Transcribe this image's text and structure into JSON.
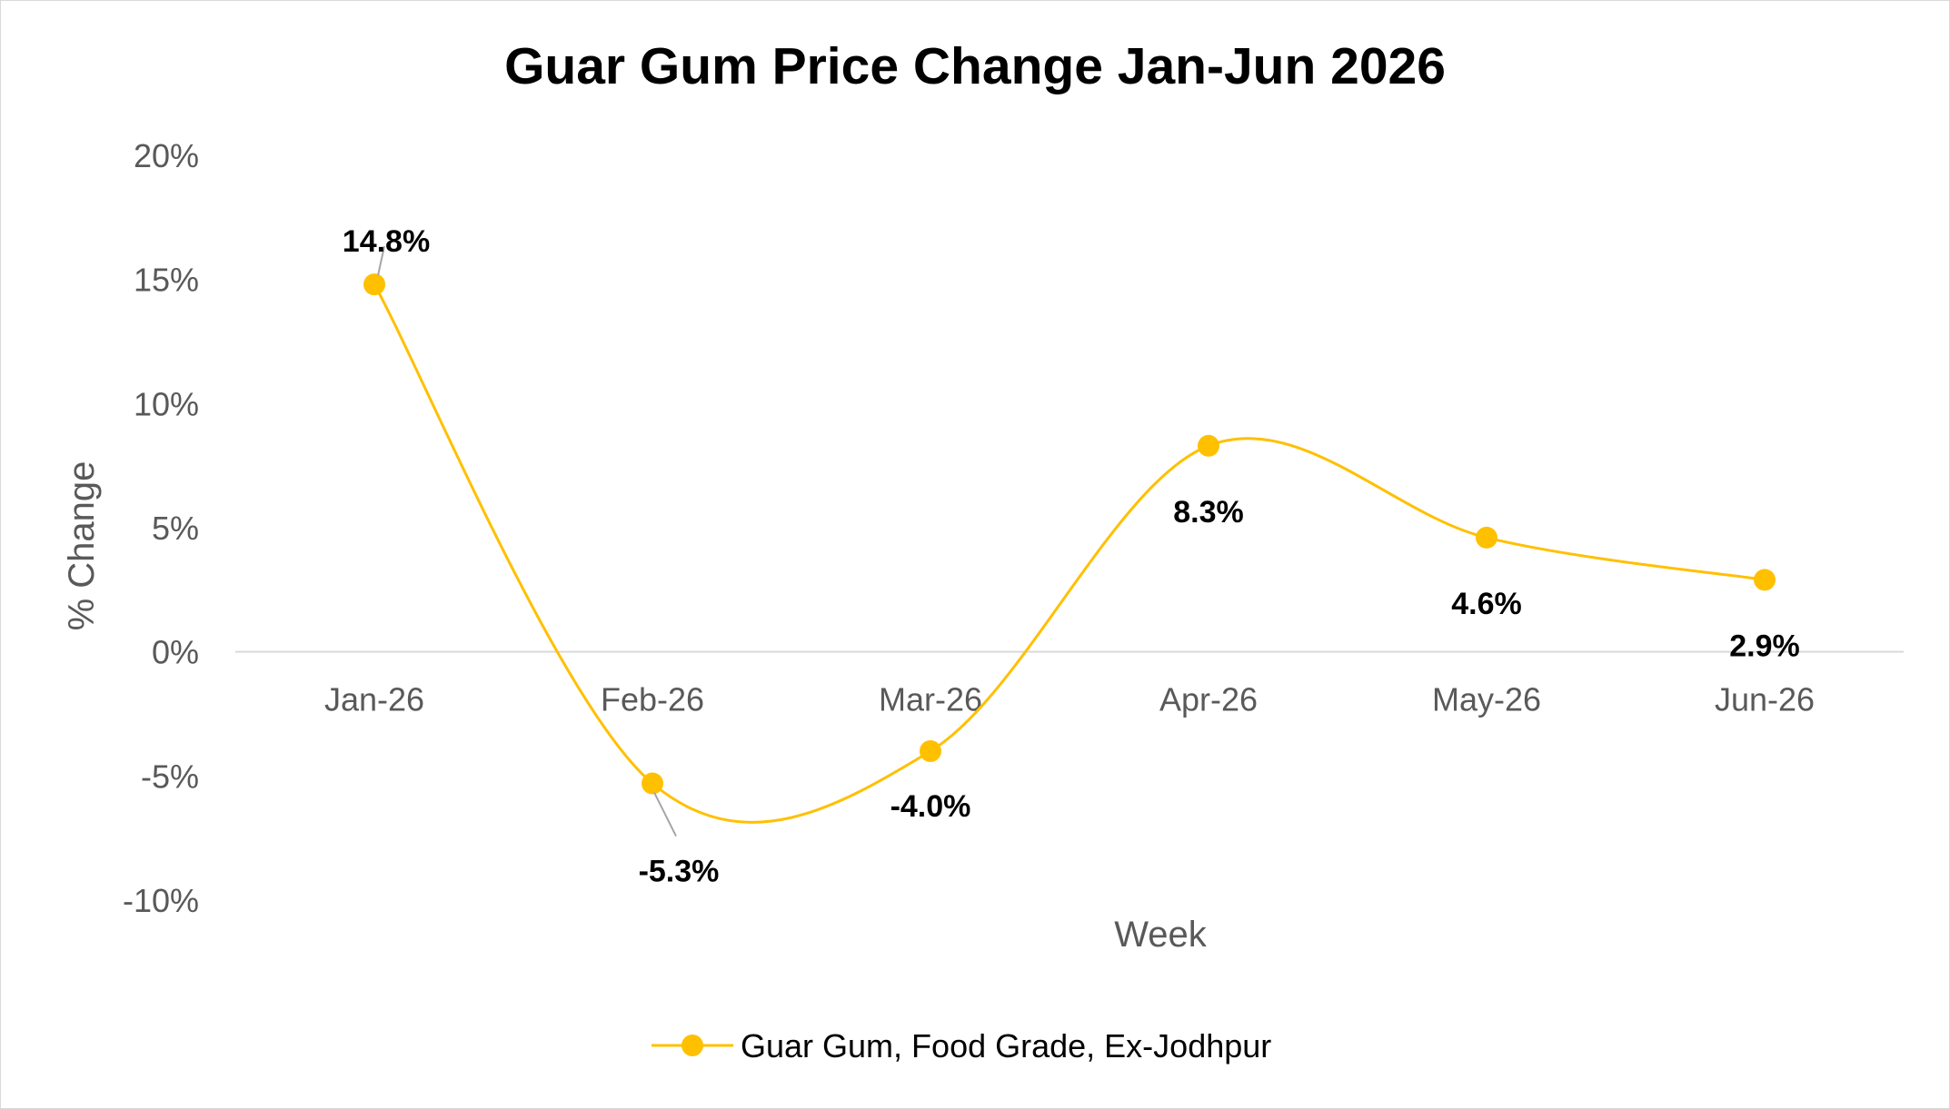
{
  "chart_data": {
    "type": "line",
    "title": "Guar Gum Price Change Jan-Jun 2026",
    "xlabel": "Week",
    "ylabel": "% Change",
    "categories": [
      "Jan-26",
      "Feb-26",
      "Mar-26",
      "Apr-26",
      "May-26",
      "Jun-26"
    ],
    "series": [
      {
        "name": "Guar Gum, Food Grade, Ex-Jodhpur",
        "values": [
          14.8,
          -5.3,
          -4.0,
          8.3,
          4.6,
          2.9
        ],
        "labels": [
          "14.8%",
          "-5.3%",
          "-4.0%",
          "8.3%",
          "4.6%",
          "2.9%"
        ],
        "color": "#FFC000",
        "smooth": true
      }
    ],
    "ylim": [
      -10,
      20
    ],
    "yticks": [
      20,
      15,
      10,
      5,
      0,
      -5,
      -10
    ],
    "ytick_labels": [
      "20%",
      "15%",
      "10%",
      "5%",
      "0%",
      "-5%",
      "-10%"
    ],
    "grid": false,
    "zero_line": true,
    "legend": "bottom"
  }
}
